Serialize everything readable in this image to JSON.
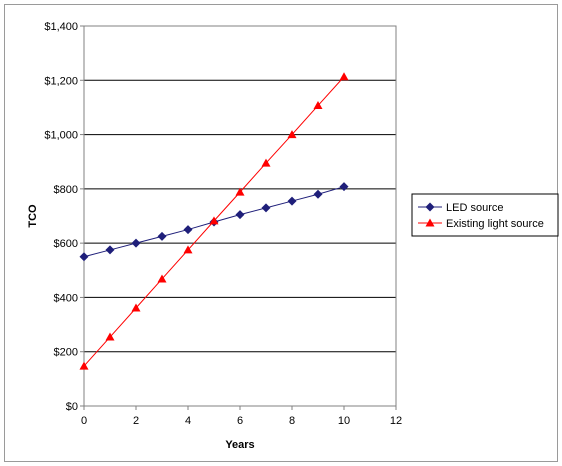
{
  "chart_data": {
    "type": "line",
    "title": "",
    "xlabel": "Years",
    "ylabel": "TCO",
    "xlim": [
      0,
      12
    ],
    "ylim": [
      0,
      1400
    ],
    "x_ticks": [
      0,
      2,
      4,
      6,
      8,
      10,
      12
    ],
    "y_ticks": [
      0,
      200,
      400,
      600,
      800,
      1000,
      1200,
      1400
    ],
    "x_tick_labels": [
      "0",
      "2",
      "4",
      "6",
      "8",
      "10",
      "12"
    ],
    "y_tick_labels": [
      "$0",
      "$200",
      "$400",
      "$600",
      "$800",
      "$1,000",
      "$1,200",
      "$1,400"
    ],
    "grid": "horizontal",
    "legend_position": "right",
    "x": [
      0,
      1,
      2,
      3,
      4,
      5,
      6,
      7,
      8,
      9,
      10
    ],
    "series": [
      {
        "name": "LED source",
        "color": "#1f1f7a",
        "marker": "diamond",
        "values": [
          550,
          575,
          600,
          625,
          650,
          678,
          705,
          730,
          755,
          780,
          808
        ]
      },
      {
        "name": "Existing light source",
        "color": "#ff0000",
        "marker": "triangle",
        "values": [
          147,
          254,
          361,
          468,
          575,
          682,
          788,
          895,
          1000,
          1107,
          1213
        ]
      }
    ]
  }
}
